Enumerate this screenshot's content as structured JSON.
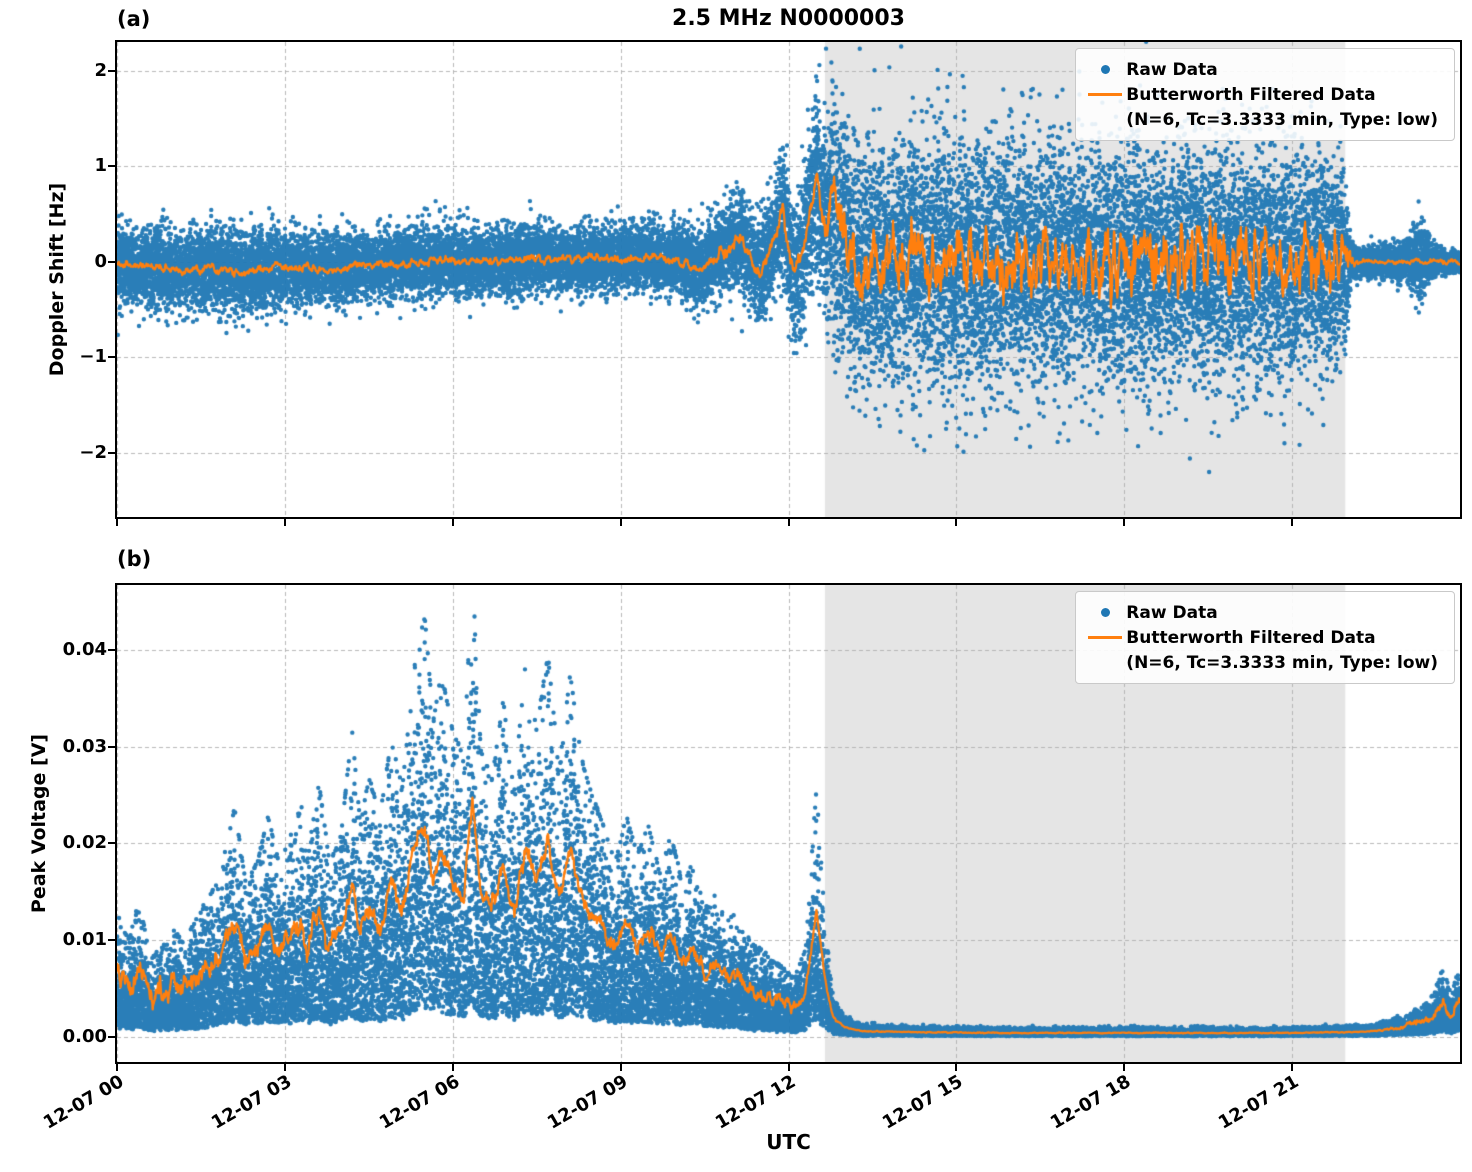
{
  "chart_data": {
    "type": "scatter",
    "title": "2.5 MHz N0000003",
    "xlabel": "UTC",
    "x_range_hours": [
      0,
      24
    ],
    "x_ticks": [
      {
        "hour": 0,
        "label": "12-07 00"
      },
      {
        "hour": 3,
        "label": "12-07 03"
      },
      {
        "hour": 6,
        "label": "12-07 06"
      },
      {
        "hour": 9,
        "label": "12-07 09"
      },
      {
        "hour": 12,
        "label": "12-07 12"
      },
      {
        "hour": 15,
        "label": "12-07 15"
      },
      {
        "hour": 18,
        "label": "12-07 18"
      },
      {
        "hour": 21,
        "label": "12-07 21"
      }
    ],
    "shaded_region_hours": [
      12.65,
      21.95
    ],
    "grid": true,
    "legend_loc": "upper right",
    "colors": {
      "raw": "#1f77b4",
      "filtered": "#ff7f0e",
      "shade": "#e5e5e5",
      "grid": "#b0b0b0"
    },
    "legend": {
      "raw": "Raw Data",
      "filtered_line1": "Butterworth Filtered Data",
      "filtered_line2": "(N=6, Tc=3.3333 min, Type: low)"
    },
    "panels": [
      {
        "id": "a",
        "corner_label": "(a)",
        "ylabel": "Doppler Shift [Hz]",
        "ylim": [
          -2.67,
          2.3
        ],
        "yticks": [
          {
            "v": 2,
            "label": "2"
          },
          {
            "v": 1,
            "label": "1"
          },
          {
            "v": 0,
            "label": "0"
          },
          {
            "v": -1,
            "label": "−1"
          },
          {
            "v": -2,
            "label": "−2"
          }
        ],
        "filtered_mean": {
          "t": [
            0,
            0.7,
            1.2,
            1.7,
            2.2,
            2.6,
            3.2,
            3.8,
            4.3,
            5.0,
            5.5,
            6.0,
            6.6,
            7.2,
            7.8,
            8.4,
            9.0,
            9.6,
            10.0,
            10.4,
            10.7,
            11.0,
            11.15,
            11.3,
            11.5,
            11.65,
            11.8,
            11.9,
            12.0,
            12.1,
            12.25,
            12.4,
            12.5,
            12.6,
            12.7,
            12.8,
            12.9,
            13.0,
            13.1,
            13.25,
            14,
            16,
            18,
            20,
            22,
            24
          ],
          "v": [
            -0.03,
            -0.06,
            -0.1,
            -0.07,
            -0.12,
            -0.07,
            -0.05,
            -0.1,
            -0.04,
            -0.02,
            0.0,
            0.02,
            0.0,
            0.03,
            0.02,
            0.04,
            0.03,
            0.05,
            0.02,
            -0.08,
            0.05,
            0.18,
            0.28,
            0.05,
            -0.12,
            0.05,
            0.35,
            0.55,
            0.15,
            -0.12,
            0.1,
            0.55,
            0.88,
            0.55,
            0.42,
            0.62,
            0.25,
            0.45,
            0.05,
            0,
            0,
            0,
            0,
            0,
            0,
            0
          ]
        },
        "filtered_wiggle": {
          "t": [
            0,
            10.5,
            10.9,
            12.6,
            12.7,
            13.2,
            21.8,
            22.0,
            22.15,
            24
          ],
          "v": [
            0.05,
            0.05,
            0.1,
            0.12,
            0.4,
            0.42,
            0.42,
            0.2,
            0.03,
            0.03
          ]
        },
        "scatter": {
          "n": 26000,
          "seed": 41,
          "kind": "additive",
          "spread": {
            "t": [
              0,
              2,
              4,
              6,
              8,
              10,
              10.8,
              11.5,
              12.0,
              12.4,
              12.65,
              12.75,
              13.5,
              15,
              17,
              19,
              21,
              21.8,
              21.95,
              22.05,
              22.3,
              23,
              23.3,
              23.6,
              24
            ],
            "v": [
              0.2,
              0.21,
              0.17,
              0.17,
              0.16,
              0.17,
              0.22,
              0.28,
              0.33,
              0.45,
              0.5,
              0.6,
              0.62,
              0.62,
              0.62,
              0.62,
              0.6,
              0.55,
              0.45,
              0.1,
              0.07,
              0.1,
              0.22,
              0.06,
              0.05
            ]
          }
        }
      },
      {
        "id": "b",
        "corner_label": "(b)",
        "ylabel": "Peak Voltage [V]",
        "ylim": [
          -0.0026,
          0.0467
        ],
        "line_min": 3e-05,
        "yticks": [
          {
            "v": 0.0,
            "label": "0.00"
          },
          {
            "v": 0.01,
            "label": "0.01"
          },
          {
            "v": 0.02,
            "label": "0.02"
          },
          {
            "v": 0.03,
            "label": "0.03"
          },
          {
            "v": 0.04,
            "label": "0.04"
          }
        ],
        "filtered_mean": {
          "t": [
            0,
            0.2,
            0.4,
            0.6,
            0.8,
            1.0,
            1.2,
            1.5,
            1.8,
            2.0,
            2.1,
            2.3,
            2.5,
            2.7,
            2.9,
            3.1,
            3.3,
            3.4,
            3.6,
            3.8,
            4.0,
            4.2,
            4.35,
            4.5,
            4.7,
            4.9,
            5.1,
            5.3,
            5.5,
            5.65,
            5.8,
            6.0,
            6.2,
            6.35,
            6.5,
            6.7,
            6.9,
            7.1,
            7.3,
            7.5,
            7.7,
            7.9,
            8.1,
            8.3,
            8.5,
            8.7,
            8.9,
            9.1,
            9.3,
            9.5,
            9.7,
            9.9,
            10.1,
            10.3,
            10.5,
            10.7,
            10.9,
            11.1,
            11.3,
            11.5,
            11.7,
            11.9,
            12.1,
            12.3,
            12.5,
            12.65,
            12.8,
            13.0,
            13.3,
            14,
            16,
            18,
            20,
            21,
            22,
            22.5,
            23,
            23.3,
            23.5,
            23.7,
            23.85,
            24
          ],
          "v": [
            0.0065,
            0.005,
            0.007,
            0.004,
            0.0045,
            0.0055,
            0.005,
            0.0065,
            0.008,
            0.0105,
            0.012,
            0.008,
            0.009,
            0.0115,
            0.009,
            0.0105,
            0.012,
            0.009,
            0.0135,
            0.009,
            0.0105,
            0.016,
            0.011,
            0.0135,
            0.0115,
            0.0155,
            0.013,
            0.019,
            0.022,
            0.0165,
            0.019,
            0.016,
            0.0145,
            0.0245,
            0.015,
            0.0135,
            0.0175,
            0.013,
            0.0195,
            0.016,
            0.02,
            0.014,
            0.019,
            0.0145,
            0.0125,
            0.011,
            0.009,
            0.0115,
            0.0095,
            0.011,
            0.0085,
            0.0105,
            0.008,
            0.009,
            0.0065,
            0.0075,
            0.006,
            0.0065,
            0.005,
            0.0045,
            0.004,
            0.0035,
            0.003,
            0.0045,
            0.013,
            0.006,
            0.002,
            0.001,
            0.0006,
            0.0005,
            0.0004,
            0.0004,
            0.0004,
            0.0004,
            0.0005,
            0.0006,
            0.001,
            0.0015,
            0.002,
            0.0035,
            0.002,
            0.004
          ]
        },
        "filtered_wiggle": {
          "t": [
            0,
            12.0,
            12.6,
            13.0,
            22.4,
            22.8,
            23.2,
            24
          ],
          "v": [
            0.0016,
            0.0009,
            0.0004,
            6e-05,
            6e-05,
            0.0002,
            0.0004,
            0.0007
          ]
        },
        "scatter": {
          "n": 26000,
          "seed": 77,
          "kind": "multiplicative",
          "base": 0.13,
          "scale": 0.8,
          "floor": 0.00015,
          "min": 2e-05
        }
      }
    ]
  }
}
